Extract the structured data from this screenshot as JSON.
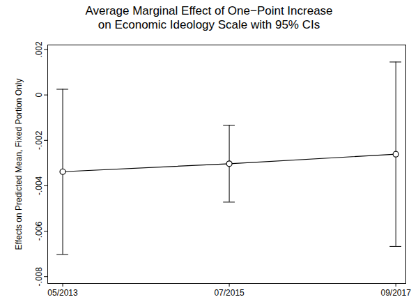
{
  "chart_data": {
    "type": "line",
    "title": "Average Marginal Effect of One−Point Increase\non Economic Ideology Scale with 95% CIs",
    "y_label": "Effects on Predicted Mean, Fixed Portion Only",
    "categories": [
      "05/2013",
      "07/2015",
      "09/2017"
    ],
    "values": [
      -0.00338,
      -0.00303,
      -0.00261
    ],
    "error_low": [
      -0.00703,
      -0.00472,
      -0.00667
    ],
    "error_high": [
      0.00025,
      -0.00133,
      0.00145
    ],
    "color": "#000000",
    "marker": "circle",
    "ylim": [
      -0.0083,
      0.0022
    ],
    "yticks": [
      {
        "value": -0.008,
        "label": "-.008"
      },
      {
        "value": -0.006,
        "label": "-.006"
      },
      {
        "value": -0.004,
        "label": "-.004"
      },
      {
        "value": -0.002,
        "label": "-.002"
      },
      0,
      {
        "value": 0.002,
        "label": ".002"
      }
    ],
    "grid": false
  }
}
